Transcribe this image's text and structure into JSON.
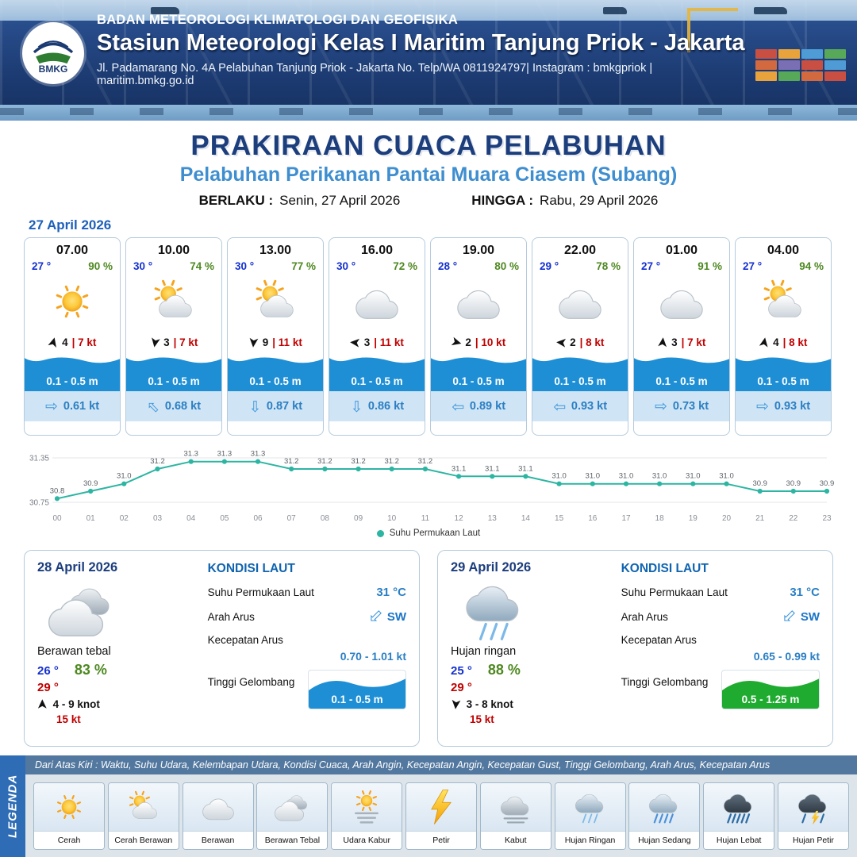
{
  "colors": {
    "header_blue": "#1d3c74",
    "title_blue": "#1c3e7c",
    "subtitle_blue": "#3e8ed0",
    "temp_blue": "#1430cf",
    "humidity_green": "#4d8820",
    "speed_red": "#c00000",
    "current_blue": "#2b7fc4",
    "wave_blue": "#1e8fd5",
    "wave_green": "#1faa30",
    "chart_teal": "#2cb5a2"
  },
  "glyphs": {
    "wind_arrow": "➤",
    "current_arrow": "⇨"
  },
  "header": {
    "logo_text": "BMKG",
    "org": "BADAN METEOROLOGI KLIMATOLOGI DAN GEOFISIKA",
    "station": "Stasiun Meteorologi Kelas I Maritim Tanjung Priok - Jakarta",
    "address": "Jl. Padamarang No. 4A Pelabuhan Tanjung Priok - Jakarta No. Telp/WA 0811924797| Instagram : bmkgpriok | maritim.bmkg.go.id"
  },
  "title": {
    "main": "PRAKIRAAN CUACA PELABUHAN",
    "subtitle": "Pelabuhan Perikanan Pantai Muara Ciasem (Subang)",
    "berlaku_label": "BERLAKU :",
    "berlaku_value": "Senin, 27 April 2026",
    "hingga_label": "HINGGA :",
    "hingga_value": "Rabu, 29 April 2026"
  },
  "forecast": {
    "date": "27 April 2026",
    "cards": [
      {
        "time": "07.00",
        "temp": "27 °",
        "humidity": "90 %",
        "icon": "cerah",
        "wind_dir_deg": -75,
        "wind_val": "4",
        "wind_speed": "| 7 kt",
        "wave": "0.1 - 0.5 m",
        "current_dir_deg": 0,
        "current": "0.61 kt"
      },
      {
        "time": "10.00",
        "temp": "30 °",
        "humidity": "74 %",
        "icon": "cerah-berawan",
        "wind_dir_deg": 100,
        "wind_val": "3",
        "wind_speed": "| 7 kt",
        "wave": "0.1 - 0.5 m",
        "current_dir_deg": -135,
        "current": "0.68 kt"
      },
      {
        "time": "13.00",
        "temp": "30 °",
        "humidity": "77 %",
        "icon": "cerah-berawan",
        "wind_dir_deg": 95,
        "wind_val": "9",
        "wind_speed": "| 11 kt",
        "wave": "0.1 - 0.5 m",
        "current_dir_deg": 90,
        "current": "0.87 kt"
      },
      {
        "time": "16.00",
        "temp": "30 °",
        "humidity": "72 %",
        "icon": "berawan",
        "wind_dir_deg": 185,
        "wind_val": "3",
        "wind_speed": "| 11 kt",
        "wave": "0.1 - 0.5 m",
        "current_dir_deg": 90,
        "current": "0.86 kt"
      },
      {
        "time": "19.00",
        "temp": "28 °",
        "humidity": "80 %",
        "icon": "berawan",
        "wind_dir_deg": 15,
        "wind_val": "2",
        "wind_speed": "| 10 kt",
        "wave": "0.1 - 0.5 m",
        "current_dir_deg": 180,
        "current": "0.89 kt"
      },
      {
        "time": "22.00",
        "temp": "29 °",
        "humidity": "78 %",
        "icon": "berawan",
        "wind_dir_deg": 185,
        "wind_val": "2",
        "wind_speed": "| 8 kt",
        "wave": "0.1 - 0.5 m",
        "current_dir_deg": 180,
        "current": "0.93 kt"
      },
      {
        "time": "01.00",
        "temp": "27 °",
        "humidity": "91 %",
        "icon": "berawan",
        "wind_dir_deg": -85,
        "wind_val": "3",
        "wind_speed": "| 7 kt",
        "wave": "0.1 - 0.5 m",
        "current_dir_deg": 0,
        "current": "0.73 kt"
      },
      {
        "time": "04.00",
        "temp": "27 °",
        "humidity": "94 %",
        "icon": "cerah-berawan",
        "wind_dir_deg": -80,
        "wind_val": "4",
        "wind_speed": "| 8 kt",
        "wave": "0.1 - 0.5 m",
        "current_dir_deg": 0,
        "current": "0.93 kt"
      }
    ]
  },
  "chart_data": {
    "type": "line",
    "x": [
      "00",
      "01",
      "02",
      "03",
      "04",
      "05",
      "06",
      "07",
      "08",
      "09",
      "10",
      "11",
      "12",
      "13",
      "14",
      "15",
      "16",
      "17",
      "18",
      "19",
      "20",
      "21",
      "22",
      "23"
    ],
    "series": [
      {
        "name": "Suhu Permukaan Laut",
        "values": [
          30.8,
          30.9,
          31.0,
          31.2,
          31.3,
          31.3,
          31.3,
          31.2,
          31.2,
          31.2,
          31.2,
          31.2,
          31.1,
          31.1,
          31.1,
          31.0,
          31.0,
          31.0,
          31.0,
          31.0,
          31.0,
          30.9,
          30.9,
          30.9
        ]
      }
    ],
    "ylim": [
      30.75,
      31.35
    ],
    "yticks": [
      30.75,
      31.35
    ],
    "xlabel": "",
    "ylabel": "",
    "line_color": "#2cb5a2",
    "legend_position": "bottom",
    "grid": true,
    "point_labels": true
  },
  "day_cards": [
    {
      "date": "28 April 2026",
      "icon": "berawan-tebal",
      "condition": "Berawan tebal",
      "temp_min": "26 °",
      "humidity": "83 %",
      "temp_max": "29 °",
      "wind_dir_deg": -90,
      "wind_range": "4 - 9 knot",
      "gust": "15 kt",
      "sea": {
        "title": "KONDISI LAUT",
        "sst_label": "Suhu Permukaan Laut",
        "sst": "31 °C",
        "current_dir_label": "Arah Arus",
        "current_dir": "SW",
        "current_dir_deg": 135,
        "current_speed_label": "Kecepatan Arus",
        "current_speed": "0.70 - 1.01 kt",
        "wave_label": "Tinggi Gelombang",
        "wave": "0.1 - 0.5 m",
        "wave_color": "#1e8fd5"
      }
    },
    {
      "date": "29 April 2026",
      "icon": "hujan-ringan",
      "condition": "Hujan ringan",
      "temp_min": "25 °",
      "humidity": "88 %",
      "temp_max": "29 °",
      "wind_dir_deg": 95,
      "wind_range": "3 - 8 knot",
      "gust": "15 kt",
      "sea": {
        "title": "KONDISI LAUT",
        "sst_label": "Suhu Permukaan Laut",
        "sst": "31 °C",
        "current_dir_label": "Arah Arus",
        "current_dir": "SW",
        "current_dir_deg": 135,
        "current_speed_label": "Kecepatan Arus",
        "current_speed": "0.65 - 0.99 kt",
        "wave_label": "Tinggi Gelombang",
        "wave": "0.5 - 1.25 m",
        "wave_color": "#1faa30"
      }
    }
  ],
  "legend": {
    "title": "LEGENDA",
    "note": "Dari Atas Kiri : Waktu, Suhu Udara, Kelembapan Udara, Kondisi Cuaca, Arah Angin, Kecepatan Angin, Kecepatan Gust, Tinggi Gelombang, Arah Arus, Kecepatan Arus",
    "items": [
      {
        "label": "Cerah",
        "icon": "cerah"
      },
      {
        "label": "Cerah Berawan",
        "icon": "cerah-berawan"
      },
      {
        "label": "Berawan",
        "icon": "berawan"
      },
      {
        "label": "Berawan Tebal",
        "icon": "berawan-tebal"
      },
      {
        "label": "Udara Kabur",
        "icon": "udara-kabur"
      },
      {
        "label": "Petir",
        "icon": "petir"
      },
      {
        "label": "Kabut",
        "icon": "kabut"
      },
      {
        "label": "Hujan Ringan",
        "icon": "hujan-ringan"
      },
      {
        "label": "Hujan Sedang",
        "icon": "hujan-sedang"
      },
      {
        "label": "Hujan Lebat",
        "icon": "hujan-lebat"
      },
      {
        "label": "Hujan Petir",
        "icon": "hujan-petir"
      }
    ]
  }
}
